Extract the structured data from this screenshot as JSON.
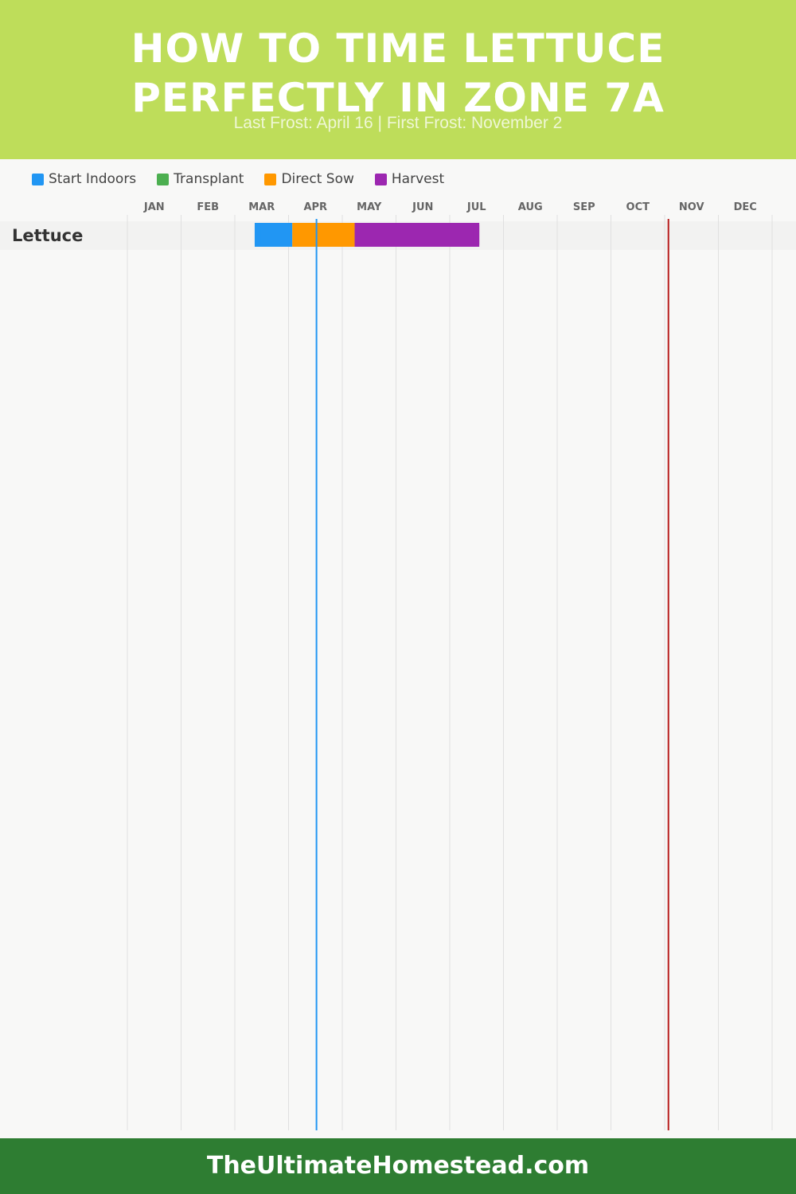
{
  "header": {
    "title": "HOW TO TIME LETTUCE PERFECTLY IN ZONE 7A",
    "subtitle": "Last Frost: April 16 | First Frost: November 2"
  },
  "legend": [
    {
      "label": "Start Indoors",
      "color": "#2196f3"
    },
    {
      "label": "Transplant",
      "color": "#4caf50"
    },
    {
      "label": "Direct Sow",
      "color": "#ff9800"
    },
    {
      "label": "Harvest",
      "color": "#9c27b0"
    }
  ],
  "colors": {
    "header_bg": "#bedd5a",
    "footer_bg": "#2e7d32",
    "last_frost_line": "#2196f3",
    "first_frost_line": "#b71c1c"
  },
  "chart_data": {
    "type": "gantt",
    "months": [
      "JAN",
      "FEB",
      "MAR",
      "APR",
      "MAY",
      "JUN",
      "JUL",
      "AUG",
      "SEP",
      "OCT",
      "NOV",
      "DEC"
    ],
    "last_frost_month": 3.52,
    "first_frost_month": 10.07,
    "rows": [
      {
        "crop": "Lettuce",
        "segments": [
          {
            "activity": "Start Indoors",
            "start_month": 2.37,
            "end_month": 3.07
          },
          {
            "activity": "Direct Sow",
            "start_month": 3.07,
            "end_month": 4.23
          },
          {
            "activity": "Harvest",
            "start_month": 4.23,
            "end_month": 6.55
          }
        ]
      }
    ]
  },
  "footer": {
    "text": "TheUltimateHomestead.com"
  }
}
